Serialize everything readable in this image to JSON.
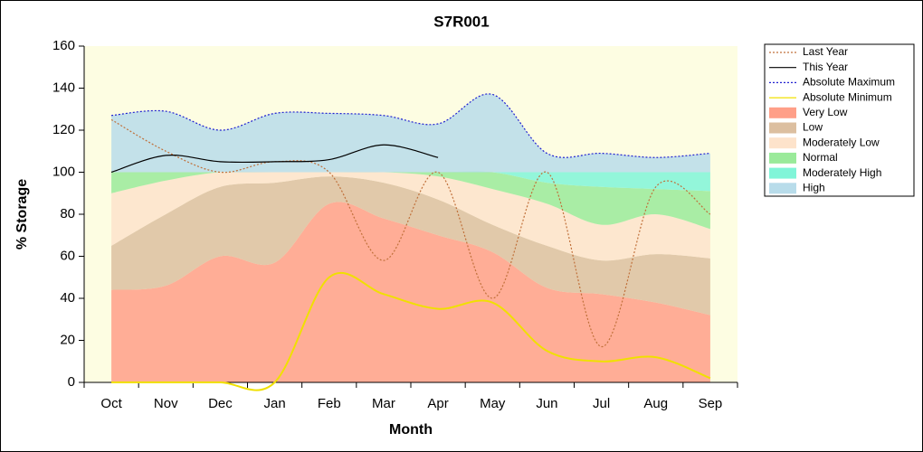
{
  "chart_data": {
    "type": "band-line",
    "title": "S7R001",
    "x_label": "Month",
    "y_label": "% Storage",
    "categories": [
      "Oct",
      "Nov",
      "Dec",
      "Jan",
      "Feb",
      "Mar",
      "Apr",
      "May",
      "Jun",
      "Jul",
      "Aug",
      "Sep"
    ],
    "ylim": [
      0,
      160
    ],
    "yticks": [
      0,
      20,
      40,
      60,
      80,
      100,
      120,
      140,
      160
    ],
    "bands": [
      {
        "name": "Very Low",
        "color": "#ff9f88",
        "values": [
          44,
          46,
          60,
          57,
          85,
          78,
          70,
          62,
          45,
          42,
          38,
          32
        ]
      },
      {
        "name": "Low",
        "color": "#dcbfa0",
        "values": [
          21,
          34,
          33,
          38,
          13,
          17,
          17,
          13,
          20,
          16,
          23,
          27
        ]
      },
      {
        "name": "Moderately Low",
        "color": "#fde3cb",
        "values": [
          25,
          16,
          7,
          5,
          2,
          5,
          11,
          17,
          20,
          17,
          19,
          14
        ]
      },
      {
        "name": "Normal",
        "color": "#9aea9a",
        "values": [
          10,
          4,
          0,
          0,
          0,
          0,
          2,
          8,
          10,
          18,
          12,
          18
        ]
      },
      {
        "name": "Moderately High",
        "color": "#80f5d8",
        "values": [
          0,
          0,
          0,
          0,
          0,
          0,
          0,
          0,
          5,
          7,
          8,
          9
        ]
      },
      {
        "name": "High",
        "color": "#b8dcea",
        "values": [
          27,
          29,
          20,
          28,
          28,
          27,
          23,
          37,
          9,
          9,
          7,
          9
        ]
      }
    ],
    "series": [
      {
        "name": "Last Year",
        "color": "#c0703a",
        "dash": "2,2",
        "values": [
          125,
          110,
          100,
          105,
          100,
          58,
          100,
          40,
          100,
          17,
          93,
          80
        ]
      },
      {
        "name": "This Year",
        "color": "#000000",
        "dash": "",
        "values": [
          100,
          108,
          105,
          105,
          106,
          113,
          107,
          null,
          null,
          null,
          null,
          null
        ]
      },
      {
        "name": "Absolute Maximum",
        "color": "#2020d0",
        "dash": "2,2",
        "values": [
          127,
          129,
          120,
          128,
          128,
          127,
          123,
          137,
          109,
          109,
          107,
          109
        ]
      },
      {
        "name": "Absolute Minimum",
        "color": "#f0e000",
        "dash": "",
        "values": [
          0,
          0,
          0,
          0,
          50,
          42,
          35,
          38,
          15,
          10,
          12,
          2
        ]
      }
    ]
  }
}
